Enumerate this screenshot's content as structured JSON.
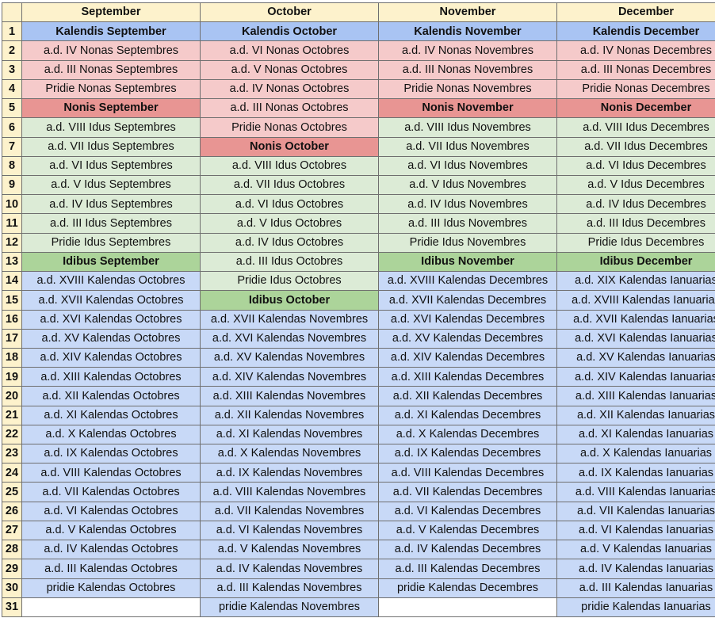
{
  "months": [
    "September",
    "October",
    "November",
    "December"
  ],
  "rows": [
    {
      "num": "1",
      "cells": [
        {
          "text": "Kalendis September",
          "kind": "k"
        },
        {
          "text": "Kalendis October",
          "kind": "k"
        },
        {
          "text": "Kalendis November",
          "kind": "k"
        },
        {
          "text": "Kalendis December",
          "kind": "k"
        }
      ]
    },
    {
      "num": "2",
      "cells": [
        {
          "text": "a.d. IV Nonas Septembres",
          "kind": "n"
        },
        {
          "text": "a.d. VI Nonas Octobres",
          "kind": "n"
        },
        {
          "text": "a.d. IV Nonas Novembres",
          "kind": "n"
        },
        {
          "text": "a.d. IV Nonas Decembres",
          "kind": "n"
        }
      ]
    },
    {
      "num": "3",
      "cells": [
        {
          "text": "a.d. III Nonas Septembres",
          "kind": "n"
        },
        {
          "text": "a.d. V Nonas Octobres",
          "kind": "n"
        },
        {
          "text": "a.d. III Nonas Novembres",
          "kind": "n"
        },
        {
          "text": "a.d. III Nonas Decembres",
          "kind": "n"
        }
      ]
    },
    {
      "num": "4",
      "cells": [
        {
          "text": "Pridie Nonas Septembres",
          "kind": "n"
        },
        {
          "text": "a.d. IV Nonas Octobres",
          "kind": "n"
        },
        {
          "text": "Pridie Nonas Novembres",
          "kind": "n"
        },
        {
          "text": "Pridie Nonas Decembres",
          "kind": "n"
        }
      ]
    },
    {
      "num": "5",
      "cells": [
        {
          "text": "Nonis September",
          "kind": "nb"
        },
        {
          "text": "a.d. III Nonas Octobres",
          "kind": "n"
        },
        {
          "text": "Nonis November",
          "kind": "nb"
        },
        {
          "text": "Nonis December",
          "kind": "nb"
        }
      ]
    },
    {
      "num": "6",
      "cells": [
        {
          "text": "a.d. VIII Idus Septembres",
          "kind": "i"
        },
        {
          "text": "Pridie Nonas Octobres",
          "kind": "n"
        },
        {
          "text": "a.d. VIII Idus Novembres",
          "kind": "i"
        },
        {
          "text": "a.d. VIII Idus Decembres",
          "kind": "i"
        }
      ]
    },
    {
      "num": "7",
      "cells": [
        {
          "text": "a.d. VII Idus Septembres",
          "kind": "i"
        },
        {
          "text": "Nonis October",
          "kind": "nb"
        },
        {
          "text": "a.d. VII Idus Novembres",
          "kind": "i"
        },
        {
          "text": "a.d. VII Idus Decembres",
          "kind": "i"
        }
      ]
    },
    {
      "num": "8",
      "cells": [
        {
          "text": "a.d. VI Idus Septembres",
          "kind": "i"
        },
        {
          "text": "a.d. VIII Idus Octobres",
          "kind": "i"
        },
        {
          "text": "a.d. VI Idus Novembres",
          "kind": "i"
        },
        {
          "text": "a.d. VI Idus Decembres",
          "kind": "i"
        }
      ]
    },
    {
      "num": "9",
      "cells": [
        {
          "text": "a.d. V Idus Septembres",
          "kind": "i"
        },
        {
          "text": "a.d. VII Idus Octobres",
          "kind": "i"
        },
        {
          "text": "a.d. V Idus Novembres",
          "kind": "i"
        },
        {
          "text": "a.d. V Idus Decembres",
          "kind": "i"
        }
      ]
    },
    {
      "num": "10",
      "cells": [
        {
          "text": "a.d. IV Idus Septembres",
          "kind": "i"
        },
        {
          "text": "a.d. VI Idus Octobres",
          "kind": "i"
        },
        {
          "text": "a.d. IV Idus Novembres",
          "kind": "i"
        },
        {
          "text": "a.d. IV Idus Decembres",
          "kind": "i"
        }
      ]
    },
    {
      "num": "11",
      "cells": [
        {
          "text": "a.d. III Idus Septembres",
          "kind": "i"
        },
        {
          "text": "a.d. V Idus Octobres",
          "kind": "i"
        },
        {
          "text": "a.d. III Idus Novembres",
          "kind": "i"
        },
        {
          "text": "a.d. III Idus Decembres",
          "kind": "i"
        }
      ]
    },
    {
      "num": "12",
      "cells": [
        {
          "text": "Pridie Idus Septembres",
          "kind": "i"
        },
        {
          "text": "a.d. IV Idus Octobres",
          "kind": "i"
        },
        {
          "text": "Pridie Idus Novembres",
          "kind": "i"
        },
        {
          "text": "Pridie Idus Decembres",
          "kind": "i"
        }
      ]
    },
    {
      "num": "13",
      "cells": [
        {
          "text": "Idibus September",
          "kind": "ib"
        },
        {
          "text": "a.d. III Idus Octobres",
          "kind": "i"
        },
        {
          "text": "Idibus November",
          "kind": "ib"
        },
        {
          "text": "Idibus December",
          "kind": "ib"
        }
      ]
    },
    {
      "num": "14",
      "cells": [
        {
          "text": "a.d. XVIII Kalendas Octobres",
          "kind": "kd"
        },
        {
          "text": "Pridie Idus Octobres",
          "kind": "i"
        },
        {
          "text": "a.d. XVIII Kalendas Decembres",
          "kind": "kd"
        },
        {
          "text": "a.d. XIX Kalendas Ianuarias",
          "kind": "kd"
        }
      ]
    },
    {
      "num": "15",
      "cells": [
        {
          "text": "a.d. XVII Kalendas Octobres",
          "kind": "kd"
        },
        {
          "text": "Idibus October",
          "kind": "ib"
        },
        {
          "text": "a.d. XVII Kalendas Decembres",
          "kind": "kd"
        },
        {
          "text": "a.d. XVIII Kalendas Ianuarias",
          "kind": "kd"
        }
      ]
    },
    {
      "num": "16",
      "cells": [
        {
          "text": "a.d. XVI Kalendas Octobres",
          "kind": "kd"
        },
        {
          "text": "a.d. XVII Kalendas Novembres",
          "kind": "kd"
        },
        {
          "text": "a.d. XVI Kalendas Decembres",
          "kind": "kd"
        },
        {
          "text": "a.d. XVII Kalendas Ianuarias",
          "kind": "kd"
        }
      ]
    },
    {
      "num": "17",
      "cells": [
        {
          "text": "a.d. XV Kalendas Octobres",
          "kind": "kd"
        },
        {
          "text": "a.d. XVI Kalendas Novembres",
          "kind": "kd"
        },
        {
          "text": "a.d. XV Kalendas Decembres",
          "kind": "kd"
        },
        {
          "text": "a.d. XVI Kalendas Ianuarias",
          "kind": "kd"
        }
      ]
    },
    {
      "num": "18",
      "cells": [
        {
          "text": "a.d. XIV Kalendas Octobres",
          "kind": "kd"
        },
        {
          "text": "a.d. XV Kalendas Novembres",
          "kind": "kd"
        },
        {
          "text": "a.d. XIV Kalendas Decembres",
          "kind": "kd"
        },
        {
          "text": "a.d. XV Kalendas Ianuarias",
          "kind": "kd"
        }
      ]
    },
    {
      "num": "19",
      "cells": [
        {
          "text": "a.d. XIII Kalendas Octobres",
          "kind": "kd"
        },
        {
          "text": "a.d. XIV Kalendas Novembres",
          "kind": "kd"
        },
        {
          "text": "a.d. XIII Kalendas Decembres",
          "kind": "kd"
        },
        {
          "text": "a.d. XIV Kalendas Ianuarias",
          "kind": "kd"
        }
      ]
    },
    {
      "num": "20",
      "cells": [
        {
          "text": "a.d. XII Kalendas Octobres",
          "kind": "kd"
        },
        {
          "text": "a.d. XIII Kalendas Novembres",
          "kind": "kd"
        },
        {
          "text": "a.d. XII Kalendas Decembres",
          "kind": "kd"
        },
        {
          "text": "a.d. XIII Kalendas Ianuarias",
          "kind": "kd"
        }
      ]
    },
    {
      "num": "21",
      "cells": [
        {
          "text": "a.d. XI Kalendas Octobres",
          "kind": "kd"
        },
        {
          "text": "a.d. XII Kalendas Novembres",
          "kind": "kd"
        },
        {
          "text": "a.d. XI Kalendas Decembres",
          "kind": "kd"
        },
        {
          "text": "a.d. XII Kalendas Ianuarias",
          "kind": "kd"
        }
      ]
    },
    {
      "num": "22",
      "cells": [
        {
          "text": "a.d. X Kalendas Octobres",
          "kind": "kd"
        },
        {
          "text": "a.d. XI Kalendas Novembres",
          "kind": "kd"
        },
        {
          "text": "a.d. X Kalendas Decembres",
          "kind": "kd"
        },
        {
          "text": "a.d. XI Kalendas Ianuarias",
          "kind": "kd"
        }
      ]
    },
    {
      "num": "23",
      "cells": [
        {
          "text": "a.d. IX Kalendas Octobres",
          "kind": "kd"
        },
        {
          "text": "a.d. X Kalendas Novembres",
          "kind": "kd"
        },
        {
          "text": "a.d. IX Kalendas Decembres",
          "kind": "kd"
        },
        {
          "text": "a.d. X Kalendas Ianuarias",
          "kind": "kd"
        }
      ]
    },
    {
      "num": "24",
      "cells": [
        {
          "text": "a.d. VIII Kalendas Octobres",
          "kind": "kd"
        },
        {
          "text": "a.d. IX Kalendas Novembres",
          "kind": "kd"
        },
        {
          "text": "a.d. VIII Kalendas Decembres",
          "kind": "kd"
        },
        {
          "text": "a.d. IX Kalendas Ianuarias",
          "kind": "kd"
        }
      ]
    },
    {
      "num": "25",
      "cells": [
        {
          "text": "a.d. VII Kalendas Octobres",
          "kind": "kd"
        },
        {
          "text": "a.d. VIII Kalendas Novembres",
          "kind": "kd"
        },
        {
          "text": "a.d. VII Kalendas Decembres",
          "kind": "kd"
        },
        {
          "text": "a.d. VIII Kalendas Ianuarias",
          "kind": "kd"
        }
      ]
    },
    {
      "num": "26",
      "cells": [
        {
          "text": "a.d. VI Kalendas Octobres",
          "kind": "kd"
        },
        {
          "text": "a.d. VII Kalendas Novembres",
          "kind": "kd"
        },
        {
          "text": "a.d. VI Kalendas Decembres",
          "kind": "kd"
        },
        {
          "text": "a.d. VII Kalendas Ianuarias",
          "kind": "kd"
        }
      ]
    },
    {
      "num": "27",
      "cells": [
        {
          "text": "a.d. V Kalendas Octobres",
          "kind": "kd"
        },
        {
          "text": "a.d. VI Kalendas Novembres",
          "kind": "kd"
        },
        {
          "text": "a.d. V Kalendas Decembres",
          "kind": "kd"
        },
        {
          "text": "a.d. VI Kalendas Ianuarias",
          "kind": "kd"
        }
      ]
    },
    {
      "num": "28",
      "cells": [
        {
          "text": "a.d. IV Kalendas Octobres",
          "kind": "kd"
        },
        {
          "text": "a.d. V Kalendas Novembres",
          "kind": "kd"
        },
        {
          "text": "a.d. IV Kalendas Decembres",
          "kind": "kd"
        },
        {
          "text": "a.d. V Kalendas Ianuarias",
          "kind": "kd"
        }
      ]
    },
    {
      "num": "29",
      "cells": [
        {
          "text": "a.d. III Kalendas Octobres",
          "kind": "kd"
        },
        {
          "text": "a.d. IV Kalendas Novembres",
          "kind": "kd"
        },
        {
          "text": "a.d. III Kalendas Decembres",
          "kind": "kd"
        },
        {
          "text": "a.d. IV Kalendas Ianuarias",
          "kind": "kd"
        }
      ]
    },
    {
      "num": "30",
      "cells": [
        {
          "text": "pridie Kalendas Octobres",
          "kind": "kd"
        },
        {
          "text": "a.d. III Kalendas Novembres",
          "kind": "kd"
        },
        {
          "text": "pridie Kalendas Decembres",
          "kind": "kd"
        },
        {
          "text": "a.d. III Kalendas Ianuarias",
          "kind": "kd"
        }
      ]
    },
    {
      "num": "31",
      "cells": [
        {
          "text": "",
          "kind": "e"
        },
        {
          "text": "pridie Kalendas Novembres",
          "kind": "kd"
        },
        {
          "text": "",
          "kind": "e"
        },
        {
          "text": "pridie Kalendas Ianuarias",
          "kind": "kd"
        }
      ]
    }
  ]
}
